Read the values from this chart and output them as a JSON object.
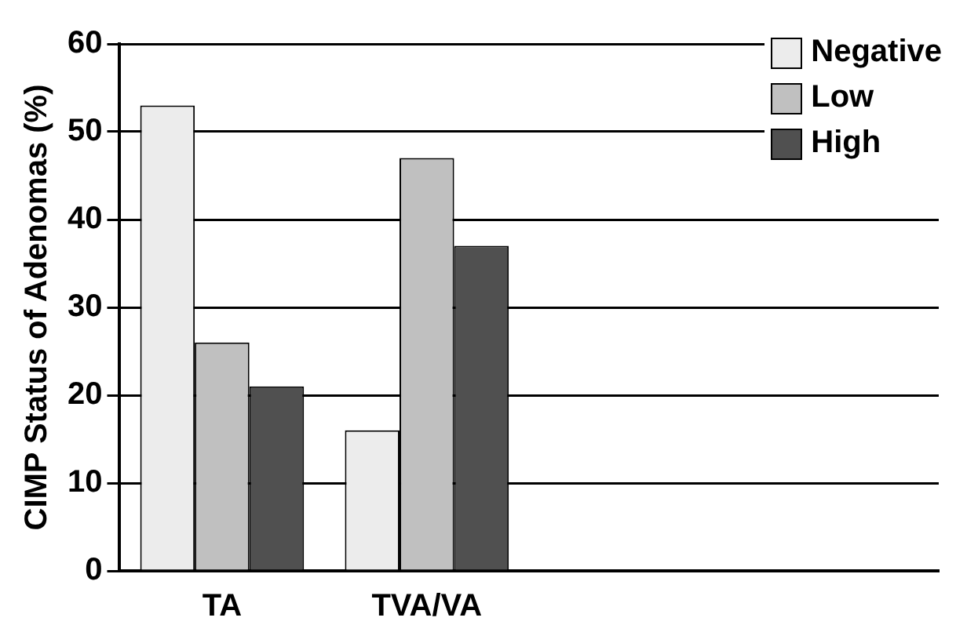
{
  "chart_data": {
    "type": "bar",
    "ylabel": "CIMP Status of Adenomas (%)",
    "categories": [
      "TA",
      "TVA/VA",
      null,
      null
    ],
    "series": [
      {
        "name": "Negative",
        "color": "#ececec",
        "values": [
          53,
          16,
          null,
          null
        ]
      },
      {
        "name": "Low",
        "color": "#c0c0c0",
        "values": [
          26,
          47,
          null,
          null
        ]
      },
      {
        "name": "High",
        "color": "#505050",
        "values": [
          21,
          37,
          null,
          null
        ]
      }
    ],
    "ylim": [
      0,
      60
    ],
    "yticks": [
      0,
      10,
      20,
      30,
      40,
      50,
      60
    ],
    "grid": "y",
    "legend": "top right"
  }
}
